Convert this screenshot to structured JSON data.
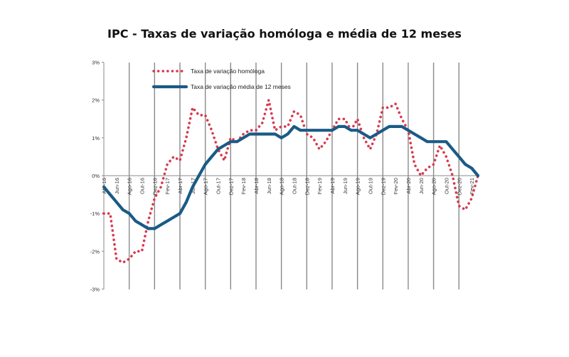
{
  "chart_data": {
    "type": "line",
    "title": "IPC - Taxas de variação homóloga e média de 12 meses",
    "xlabel": "",
    "ylabel": "",
    "ylim": [
      -3,
      3
    ],
    "y_ticks": [
      "3%",
      "2%",
      "1%",
      "0%",
      "-1%",
      "-2%",
      "-3%"
    ],
    "grid": "vertical",
    "legend_position": "top-left",
    "x": [
      "Abr-16",
      "Mai-16",
      "Jun-16",
      "Jul-16",
      "Ago-16",
      "Set-16",
      "Out-16",
      "Nov-16",
      "Dez-16",
      "Jan-17",
      "Fev-17",
      "Mar-17",
      "Abr-17",
      "Mai-17",
      "Jun-17",
      "Jul-17",
      "Ago-17",
      "Set-17",
      "Out-17",
      "Nov-17",
      "Dez-17",
      "Jan-18",
      "Fev-18",
      "Mar-18",
      "Abr-18",
      "Mai-18",
      "Jun-18",
      "Jul-18",
      "Ago-18",
      "Set-18",
      "Out-18",
      "Nov-18",
      "Dez-18",
      "Jan-19",
      "Fev-19",
      "Mar-19",
      "Abr-19",
      "Mai-19",
      "Jun-19",
      "Jul-19",
      "Ago-19",
      "Set-19",
      "Out-19",
      "Nov-19",
      "Dez-19",
      "Jan-20",
      "Fev-20",
      "Mar-20",
      "Abr-20",
      "Mai-20",
      "Jun-20",
      "Jul-20",
      "Ago-20",
      "Set-20",
      "Out-20",
      "Nov-20",
      "Dez-20",
      "Jan-21",
      "Fev-21",
      "Mar-21"
    ],
    "x_tick_labels": [
      "Abr-16",
      "Jun-16",
      "Ago-16",
      "Out-16",
      "Dez-16",
      "Fev-17",
      "Abr-17",
      "Jun-17",
      "Ago-17",
      "Out-17",
      "Dez-17",
      "Fev-18",
      "Abr-18",
      "Jun-18",
      "Ago-18",
      "Out-18",
      "Dez-18",
      "Fev-19",
      "Abr-19",
      "Jun-19",
      "Ago-19",
      "Out-19",
      "Dez-19",
      "Fev-20",
      "Abr-20",
      "Jun-20",
      "Ago-20",
      "Out-20",
      "Dez-20",
      "Fev-21"
    ],
    "series": [
      {
        "name": "Taxa de variação homóloga",
        "color": "#d63a4f",
        "style": "dotted",
        "values": [
          -1.0,
          -1.0,
          -2.2,
          -2.3,
          -2.2,
          -2.0,
          -2.0,
          -1.2,
          -0.6,
          -0.3,
          0.3,
          0.5,
          0.4,
          1.0,
          1.8,
          1.6,
          1.6,
          1.2,
          0.7,
          0.4,
          1.0,
          0.9,
          1.1,
          1.2,
          1.2,
          1.4,
          2.0,
          1.2,
          1.3,
          1.3,
          1.7,
          1.6,
          1.1,
          1.0,
          0.7,
          0.9,
          1.2,
          1.5,
          1.5,
          1.2,
          1.5,
          1.0,
          0.7,
          1.1,
          1.8,
          1.8,
          1.9,
          1.5,
          1.2,
          0.3,
          0.0,
          0.2,
          0.3,
          0.8,
          0.5,
          0.0,
          -0.8,
          -0.9,
          -0.6,
          0.0
        ]
      },
      {
        "name": "Taxa de variação média de 12 meses",
        "color": "#1b5a86",
        "style": "solid",
        "values": [
          -0.3,
          -0.5,
          -0.7,
          -0.9,
          -1.0,
          -1.2,
          -1.3,
          -1.4,
          -1.4,
          -1.3,
          -1.2,
          -1.1,
          -1.0,
          -0.7,
          -0.3,
          0.0,
          0.3,
          0.5,
          0.7,
          0.8,
          0.9,
          0.9,
          1.0,
          1.1,
          1.1,
          1.1,
          1.1,
          1.1,
          1.0,
          1.1,
          1.3,
          1.2,
          1.2,
          1.2,
          1.2,
          1.2,
          1.2,
          1.3,
          1.3,
          1.2,
          1.2,
          1.1,
          1.0,
          1.1,
          1.2,
          1.3,
          1.3,
          1.3,
          1.2,
          1.1,
          1.0,
          0.9,
          0.9,
          0.9,
          0.9,
          0.7,
          0.5,
          0.3,
          0.2,
          0.0
        ]
      }
    ]
  }
}
